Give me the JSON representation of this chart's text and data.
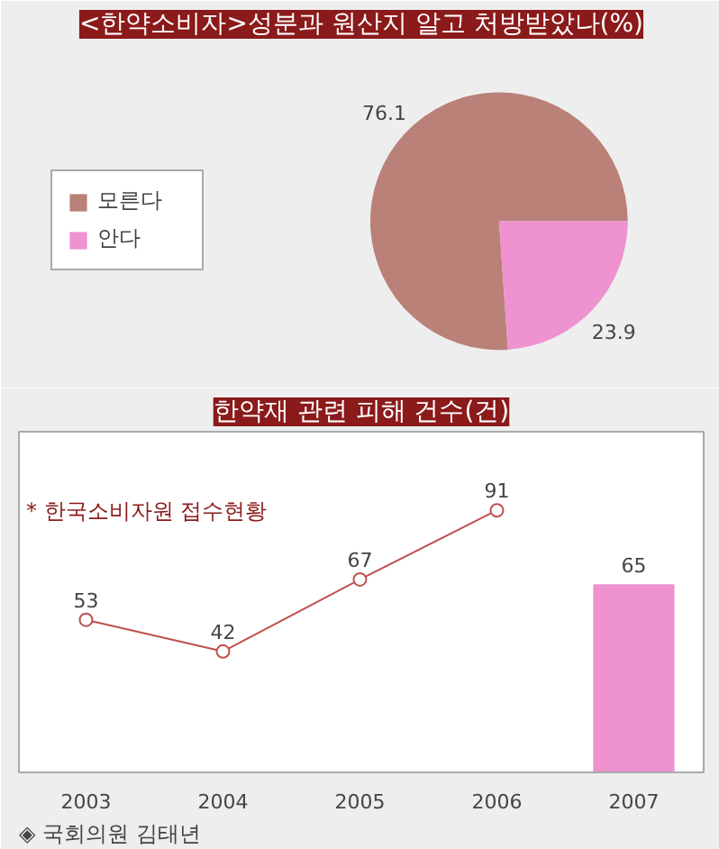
{
  "chart_data": [
    {
      "type": "pie",
      "title": "<한약소비자>성분과 원산지 알고 처방받았나(%)",
      "categories": [
        "모른다",
        "안다"
      ],
      "values": [
        76.1,
        23.9
      ],
      "colors": [
        "#b98177",
        "#ee92d0"
      ],
      "data_labels": true,
      "legend": "left"
    },
    {
      "type": "line",
      "title": "한약재 관련 피해 건수(건)",
      "categories": [
        "2003",
        "2004",
        "2005",
        "2006",
        "2007"
      ],
      "series": [
        {
          "type": "line",
          "color": "#c0504d",
          "values": [
            53,
            42,
            67,
            91,
            null
          ]
        },
        {
          "type": "bar",
          "color": "#ee92d0",
          "values": [
            null,
            null,
            null,
            null,
            65
          ]
        }
      ],
      "data_labels": true,
      "marker": "circle",
      "grid": false,
      "annotations": [
        "* 한국소비자원 접수현황",
        "◈ 국회의원 김태년"
      ]
    }
  ]
}
